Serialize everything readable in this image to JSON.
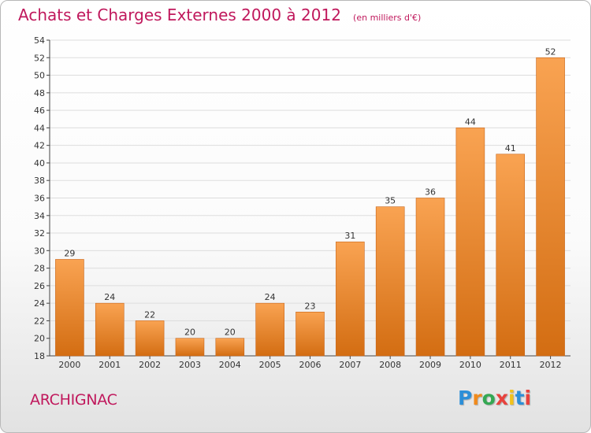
{
  "header": {
    "title": "Achats et Charges Externes 2000 à 2012",
    "unit": "(en milliers d'€)"
  },
  "footer": {
    "commune": "ARCHIGNAC",
    "brand": "Proxiti"
  },
  "colors": {
    "title": "#c0185c",
    "bar_light": "#f9a352",
    "bar_dark": "#d36d12"
  },
  "chart_data": {
    "type": "bar",
    "title": "Achats et Charges Externes 2000 à 2012",
    "subtitle": "(en milliers d'€)",
    "categories": [
      "2000",
      "2001",
      "2002",
      "2003",
      "2004",
      "2005",
      "2006",
      "2007",
      "2008",
      "2009",
      "2010",
      "2011",
      "2012"
    ],
    "values": [
      29,
      24,
      22,
      20,
      20,
      24,
      23,
      31,
      35,
      36,
      44,
      41,
      52
    ],
    "ylim": [
      18,
      54
    ],
    "yticks": [
      18,
      20,
      22,
      24,
      26,
      28,
      30,
      32,
      34,
      36,
      38,
      40,
      42,
      44,
      46,
      48,
      50,
      52,
      54
    ],
    "grid": true,
    "legend": "none"
  }
}
